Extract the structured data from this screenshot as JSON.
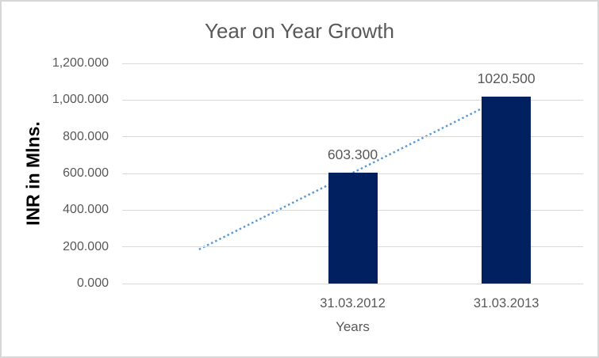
{
  "chart_data": {
    "type": "bar",
    "title": "Year on Year Growth",
    "xlabel": "Years",
    "ylabel": "INR in Mlns.",
    "categories": [
      "",
      "31.03.2012",
      "31.03.2013"
    ],
    "values": [
      null,
      603.3,
      1020.5
    ],
    "data_labels": [
      "",
      "603.300",
      "1020.500"
    ],
    "series": [
      {
        "name": "INR in Mlns.",
        "values": [
          null,
          603.3,
          1020.5
        ]
      }
    ],
    "y_ticks": [
      {
        "label": "1,200.000",
        "value": 1200
      },
      {
        "label": "1,000.000",
        "value": 1000
      },
      {
        "label": "800.000",
        "value": 800
      },
      {
        "label": "600.000",
        "value": 600
      },
      {
        "label": "400.000",
        "value": 400
      },
      {
        "label": "200.000",
        "value": 200
      },
      {
        "label": "0.000",
        "value": 0
      }
    ],
    "ylim": [
      0,
      1200
    ],
    "grid": true,
    "legend": false,
    "trendline": {
      "type": "linear",
      "style": "dotted",
      "from_slot": 0,
      "to_slot": 2,
      "start_value": 186.1,
      "end_value": 1020.5
    },
    "colors": {
      "bar": "#002060",
      "trendline": "#5b9bd5",
      "gridline": "#d9d9d9",
      "tick_text": "#595959",
      "title_text": "#595959",
      "axis_title_text": "#000000",
      "chart_border": "#d7d7d7",
      "background": "#ffffff"
    }
  }
}
